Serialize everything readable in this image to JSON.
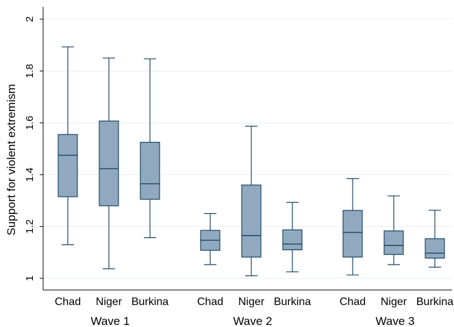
{
  "chart_data": {
    "type": "boxplot",
    "ylabel": "Support for violent extremism",
    "ylim": [
      0.95,
      2.05
    ],
    "yticks": [
      1,
      1.2,
      1.4,
      1.6,
      1.8,
      2
    ],
    "ytick_labels": [
      "1",
      "1.2",
      "1.4",
      "1.6",
      "1.8",
      "2"
    ],
    "grid": true,
    "groups": [
      {
        "label": "Wave 1",
        "boxes": [
          {
            "category": "Chad",
            "min": 1.13,
            "q1": 1.315,
            "median": 1.475,
            "q3": 1.555,
            "max": 1.893
          },
          {
            "category": "Niger",
            "min": 1.037,
            "q1": 1.28,
            "median": 1.423,
            "q3": 1.607,
            "max": 1.85
          },
          {
            "category": "Burkina",
            "min": 1.157,
            "q1": 1.305,
            "median": 1.365,
            "q3": 1.525,
            "max": 1.847
          }
        ]
      },
      {
        "label": "Wave 2",
        "boxes": [
          {
            "category": "Chad",
            "min": 1.053,
            "q1": 1.108,
            "median": 1.147,
            "q3": 1.185,
            "max": 1.25
          },
          {
            "category": "Niger",
            "min": 1.01,
            "q1": 1.082,
            "median": 1.165,
            "q3": 1.36,
            "max": 1.587
          },
          {
            "category": "Burkina",
            "min": 1.025,
            "q1": 1.11,
            "median": 1.132,
            "q3": 1.187,
            "max": 1.293
          }
        ]
      },
      {
        "label": "Wave 3",
        "boxes": [
          {
            "category": "Chad",
            "min": 1.013,
            "q1": 1.082,
            "median": 1.177,
            "q3": 1.262,
            "max": 1.385
          },
          {
            "category": "Niger",
            "min": 1.053,
            "q1": 1.092,
            "median": 1.127,
            "q3": 1.183,
            "max": 1.318
          },
          {
            "category": "Burkina",
            "min": 1.043,
            "q1": 1.078,
            "median": 1.097,
            "q3": 1.153,
            "max": 1.263
          }
        ]
      }
    ],
    "colors": {
      "box_fill": "#91a9bf",
      "box_stroke": "#1b4565",
      "grid": "#e8ecef",
      "axis": "#000000"
    }
  }
}
